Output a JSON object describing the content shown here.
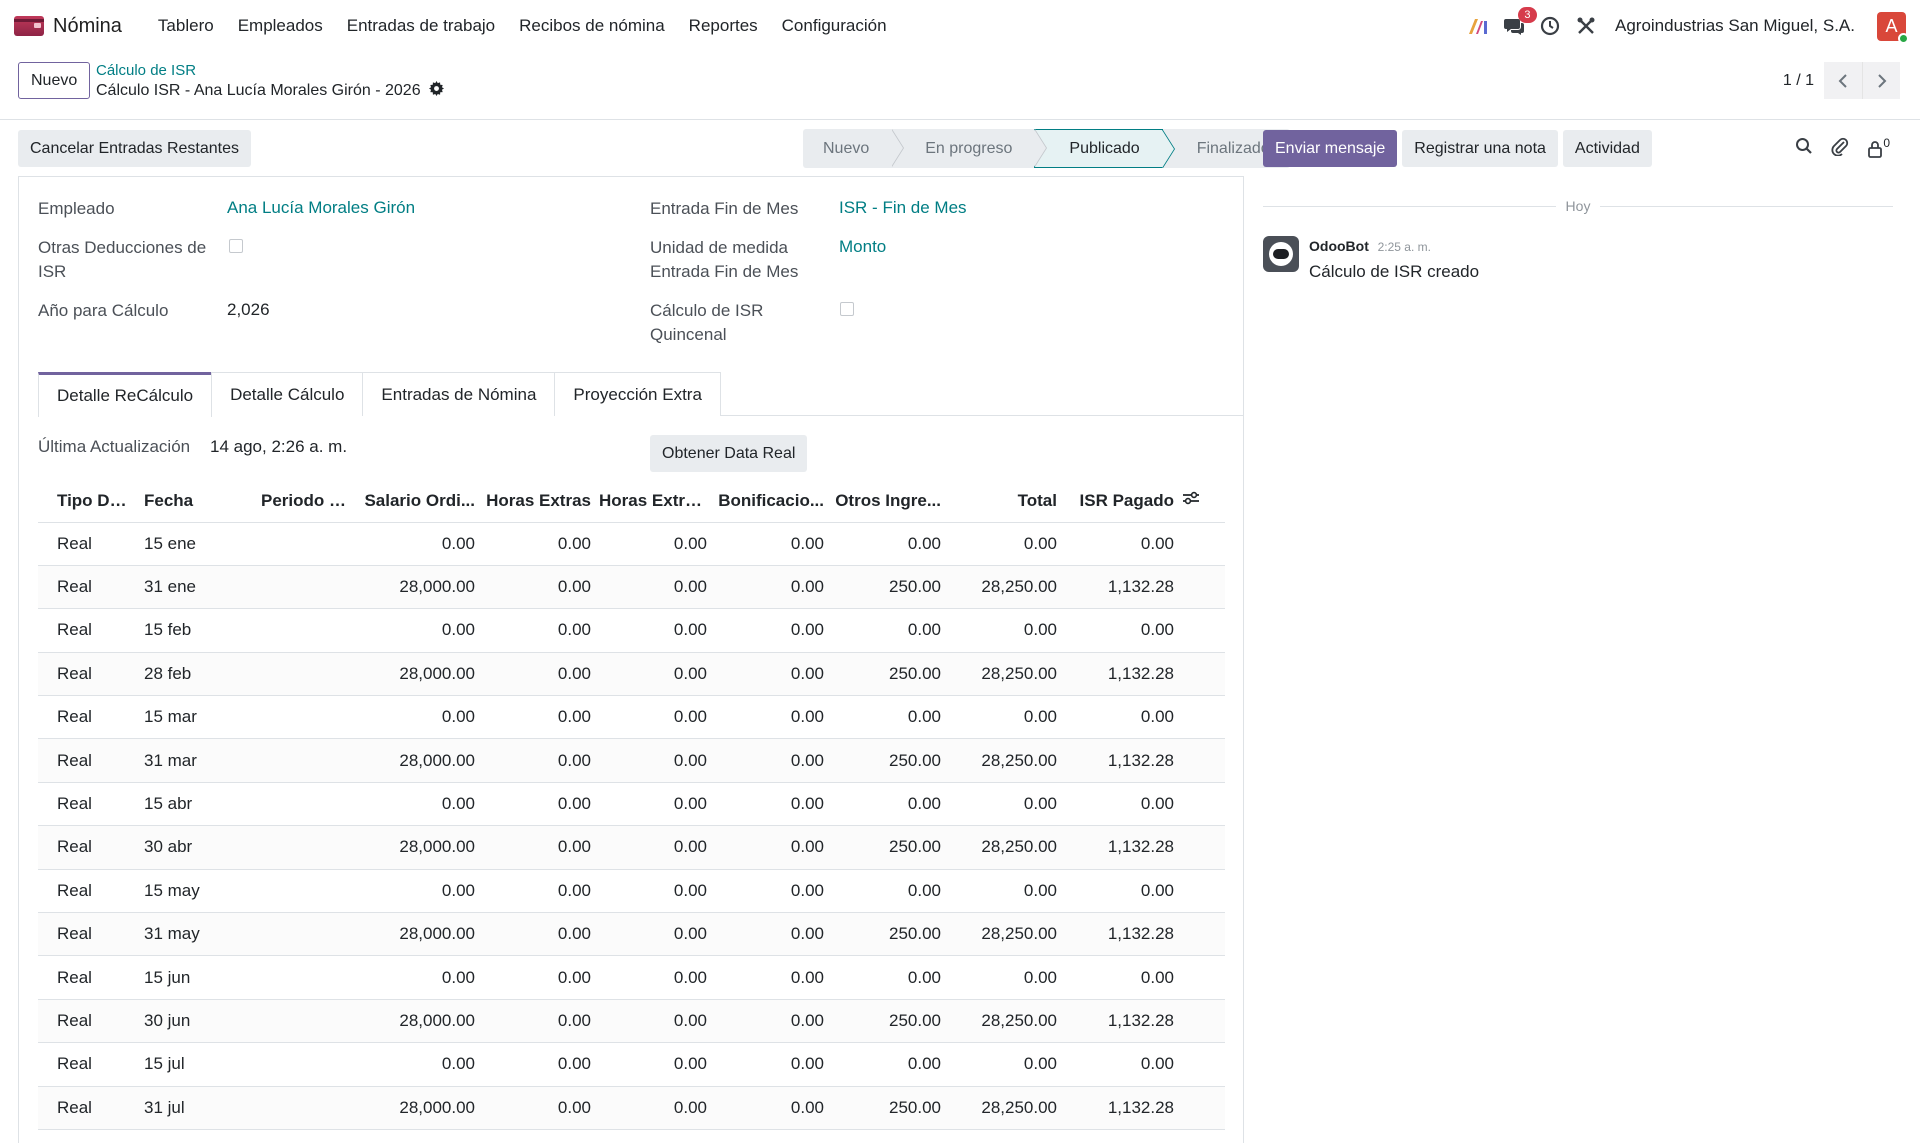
{
  "navbar": {
    "app_name": "Nómina",
    "menu": [
      "Tablero",
      "Empleados",
      "Entradas de trabajo",
      "Recibos de nómina",
      "Reportes",
      "Configuración"
    ],
    "chat_badge": "3",
    "company": "Agroindustrias San Miguel, S.A.",
    "avatar_letter": "A"
  },
  "control": {
    "new_button": "Nuevo",
    "breadcrumb_parent": "Cálculo de ISR",
    "breadcrumb_current": "Cálculo ISR - Ana Lucía Morales Girón - 2026",
    "pager_value": "1 / 1"
  },
  "statusbar": {
    "cancel_button": "Cancelar Entradas Restantes",
    "stages": [
      "Nuevo",
      "En progreso",
      "Publicado",
      "Finalizado"
    ],
    "active_stage": "Publicado"
  },
  "form": {
    "employee_label": "Empleado",
    "employee_value": "Ana Lucía Morales Girón",
    "other_deductions_label_1": "Otras Deducciones de",
    "other_deductions_label_2": "ISR",
    "year_label": "Año para Cálculo",
    "year_value": "2,026",
    "month_end_label": "Entrada Fin de Mes",
    "month_end_value": "ISR - Fin de Mes",
    "unit_label_1": "Unidad de medida",
    "unit_label_2": "Entrada Fin de Mes",
    "unit_value": "Monto",
    "biweekly_label_1": "Cálculo de ISR",
    "biweekly_label_2": "Quincenal",
    "other_deductions_checked": false,
    "biweekly_checked": false
  },
  "tabs": [
    "Detalle ReCálculo",
    "Detalle Cálculo",
    "Entradas de Nómina",
    "Proyección Extra"
  ],
  "active_tab": "Detalle ReCálculo",
  "recalc": {
    "last_update_label": "Última Actualización",
    "last_update_value": "14 ago, 2:26 a. m.",
    "real_data_button": "Obtener Data Real"
  },
  "table": {
    "columns": [
      "Tipo Detalle",
      "Fecha",
      "Periodo C...",
      "Salario Ordi...",
      "Horas Extras",
      "Horas Extra...",
      "Bonificacio...",
      "Otros Ingre...",
      "Total",
      "ISR Pagado"
    ],
    "rows": [
      [
        "Real",
        "15 ene",
        "",
        "0.00",
        "0.00",
        "0.00",
        "0.00",
        "0.00",
        "0.00",
        "0.00"
      ],
      [
        "Real",
        "31 ene",
        "",
        "28,000.00",
        "0.00",
        "0.00",
        "0.00",
        "250.00",
        "28,250.00",
        "1,132.28"
      ],
      [
        "Real",
        "15 feb",
        "",
        "0.00",
        "0.00",
        "0.00",
        "0.00",
        "0.00",
        "0.00",
        "0.00"
      ],
      [
        "Real",
        "28 feb",
        "",
        "28,000.00",
        "0.00",
        "0.00",
        "0.00",
        "250.00",
        "28,250.00",
        "1,132.28"
      ],
      [
        "Real",
        "15 mar",
        "",
        "0.00",
        "0.00",
        "0.00",
        "0.00",
        "0.00",
        "0.00",
        "0.00"
      ],
      [
        "Real",
        "31 mar",
        "",
        "28,000.00",
        "0.00",
        "0.00",
        "0.00",
        "250.00",
        "28,250.00",
        "1,132.28"
      ],
      [
        "Real",
        "15 abr",
        "",
        "0.00",
        "0.00",
        "0.00",
        "0.00",
        "0.00",
        "0.00",
        "0.00"
      ],
      [
        "Real",
        "30 abr",
        "",
        "28,000.00",
        "0.00",
        "0.00",
        "0.00",
        "250.00",
        "28,250.00",
        "1,132.28"
      ],
      [
        "Real",
        "15 may",
        "",
        "0.00",
        "0.00",
        "0.00",
        "0.00",
        "0.00",
        "0.00",
        "0.00"
      ],
      [
        "Real",
        "31 may",
        "",
        "28,000.00",
        "0.00",
        "0.00",
        "0.00",
        "250.00",
        "28,250.00",
        "1,132.28"
      ],
      [
        "Real",
        "15 jun",
        "",
        "0.00",
        "0.00",
        "0.00",
        "0.00",
        "0.00",
        "0.00",
        "0.00"
      ],
      [
        "Real",
        "30 jun",
        "",
        "28,000.00",
        "0.00",
        "0.00",
        "0.00",
        "250.00",
        "28,250.00",
        "1,132.28"
      ],
      [
        "Real",
        "15 jul",
        "",
        "0.00",
        "0.00",
        "0.00",
        "0.00",
        "0.00",
        "0.00",
        "0.00"
      ],
      [
        "Real",
        "31 jul",
        "",
        "28,000.00",
        "0.00",
        "0.00",
        "0.00",
        "250.00",
        "28,250.00",
        "1,132.28"
      ]
    ]
  },
  "chatter": {
    "send_message": "Enviar mensaje",
    "log_note": "Registrar una nota",
    "activity": "Actividad",
    "followers_count": "0",
    "day_separator": "Hoy",
    "message_author": "OdooBot",
    "message_time": "2:25 a. m.",
    "message_body": "Cálculo de ISR creado"
  },
  "colors": {
    "brand": "#71639e",
    "link": "#017e84",
    "badge": "#d63b4b"
  }
}
